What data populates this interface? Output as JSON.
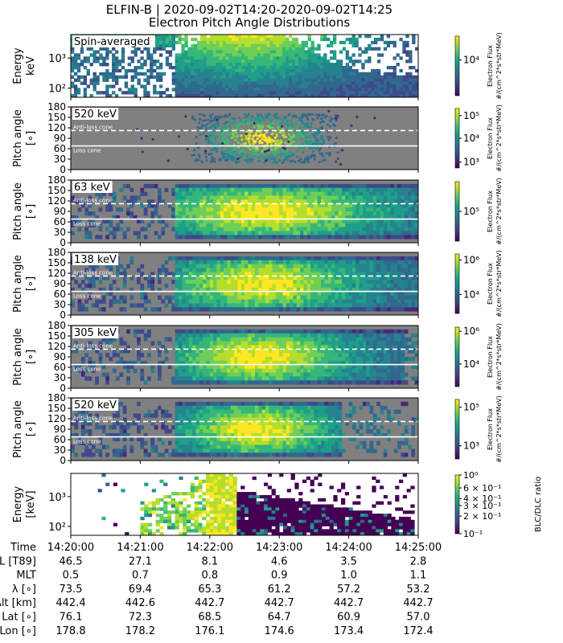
{
  "title": {
    "line1": "ELFIN-B | 2020-09-02T14:20-2020-09-02T14:25",
    "line2": "Electron Pitch Angle Distributions"
  },
  "chart_data": [
    {
      "type": "heatmap",
      "panel": "spectrogram",
      "label": "Spin-averaged",
      "ylabel": [
        "Energy",
        "keV"
      ],
      "yscale": "log",
      "yticks": [
        {
          "value": 100,
          "label": "10²"
        },
        {
          "value": 1000,
          "label": "10³"
        }
      ],
      "ylim": [
        50,
        6000
      ],
      "colorbar": {
        "label": [
          "Electron Flux",
          "#/(cm^2*s*str*MeV)"
        ],
        "ticks": [
          {
            "value": 0.6,
            "label": "10⁴"
          }
        ]
      }
    },
    {
      "type": "scatter",
      "panel": "pa",
      "label": "520 keV",
      "ylabel": [
        "Pitch angle",
        "[∘]"
      ],
      "yticks": [
        0,
        30,
        60,
        90,
        120,
        150,
        180
      ],
      "ylim": [
        0,
        180
      ],
      "anti_loss_cone_label": "Anti-loss cone",
      "loss_cone_label": "Loss cone",
      "anti_loss_cone_deg": 112,
      "loss_cone_deg": 68,
      "colorbar": {
        "label": [
          "Electron Flux",
          "#/(cm^2*s*str*MeV)"
        ],
        "ticks": [
          {
            "value": 0.1,
            "label": "10³"
          },
          {
            "value": 0.5,
            "label": "10⁴"
          },
          {
            "value": 0.88,
            "label": "10⁵"
          }
        ]
      }
    },
    {
      "type": "heatmap",
      "panel": "pa",
      "label": "63 keV",
      "ylabel": [
        "Pitch angle",
        "[∘]"
      ],
      "yticks": [
        0,
        30,
        60,
        90,
        120,
        150,
        180
      ],
      "ylim": [
        0,
        180
      ],
      "anti_loss_cone_label": "Anti-loss cone",
      "loss_cone_label": "Loss cone",
      "anti_loss_cone_deg": 112,
      "loss_cone_deg": 68,
      "colorbar": {
        "label": [
          "Electron Flux",
          "#/(cm^2*s*str*MeV)"
        ],
        "ticks": [
          {
            "value": 0.5,
            "label": "10⁵"
          }
        ]
      }
    },
    {
      "type": "heatmap",
      "panel": "pa",
      "label": "138 keV",
      "ylabel": [
        "Pitch angle",
        "[∘]"
      ],
      "yticks": [
        0,
        30,
        60,
        90,
        120,
        150,
        180
      ],
      "ylim": [
        0,
        180
      ],
      "anti_loss_cone_label": "Anti-loss cone",
      "loss_cone_label": "Loss cone",
      "anti_loss_cone_deg": 112,
      "loss_cone_deg": 68,
      "colorbar": {
        "label": [
          "Electron Flux",
          "#/(cm^2*s*str*MeV)"
        ],
        "ticks": [
          {
            "value": 0.32,
            "label": "10⁴"
          },
          {
            "value": 0.9,
            "label": "10⁶"
          }
        ]
      }
    },
    {
      "type": "heatmap",
      "panel": "pa",
      "label": "305 keV",
      "ylabel": [
        "Pitch angle",
        "[∘]"
      ],
      "yticks": [
        0,
        30,
        60,
        90,
        120,
        150,
        180
      ],
      "ylim": [
        0,
        180
      ],
      "anti_loss_cone_label": "Anti-loss cone",
      "loss_cone_label": "Loss cone",
      "anti_loss_cone_deg": 112,
      "loss_cone_deg": 68,
      "colorbar": {
        "label": [
          "Electron Flux",
          "#/(cm^2*s*str*MeV)"
        ],
        "ticks": [
          {
            "value": 0.38,
            "label": "10⁴"
          },
          {
            "value": 0.93,
            "label": "10⁶"
          }
        ]
      }
    },
    {
      "type": "heatmap",
      "panel": "pa",
      "label": "520 keV",
      "ylabel": [
        "Pitch angle",
        "[∘]"
      ],
      "yticks": [
        0,
        30,
        60,
        90,
        120,
        150,
        180
      ],
      "ylim": [
        0,
        180
      ],
      "anti_loss_cone_label": "Anti-loss cone",
      "loss_cone_label": "Loss cone",
      "anti_loss_cone_deg": 112,
      "loss_cone_deg": 68,
      "colorbar": {
        "label": [
          "Electron Flux",
          "#/(cm^2*s*str*MeV)"
        ],
        "ticks": [
          {
            "value": 0.22,
            "label": "10³"
          },
          {
            "value": 0.87,
            "label": "10⁵"
          }
        ]
      }
    },
    {
      "type": "heatmap",
      "panel": "ratio",
      "label": "",
      "ylabel": [
        "Energy",
        "[keV]"
      ],
      "yscale": "log",
      "yticks": [
        {
          "value": 100,
          "label": "10²"
        },
        {
          "value": 1000,
          "label": "10³"
        }
      ],
      "ylim": [
        50,
        6000
      ],
      "colorbar": {
        "label": [
          "BLC/DLC ratio"
        ],
        "ticks": [
          {
            "value": 0.0,
            "label": "10⁻¹"
          },
          {
            "value": 0.3,
            "label": "2 × 10⁻¹"
          },
          {
            "value": 0.48,
            "label": "3 × 10⁻¹"
          },
          {
            "value": 0.6,
            "label": "4 × 10⁻¹"
          },
          {
            "value": 0.78,
            "label": "6 × 10⁻¹"
          },
          {
            "value": 1.0,
            "label": "10⁰"
          }
        ]
      }
    }
  ],
  "xaxis": {
    "ticks": [
      "14:20:00",
      "14:21:00",
      "14:22:00",
      "14:23:00",
      "14:24:00",
      "14:25:00"
    ]
  },
  "ephemeris": [
    {
      "name": "Time",
      "values": [
        "",
        "",
        "",
        "",
        "",
        ""
      ]
    },
    {
      "name": "L [T89]",
      "values": [
        "46.5",
        "27.1",
        "8.1",
        "4.6",
        "3.5",
        "2.8"
      ]
    },
    {
      "name": "MLT",
      "values": [
        "0.5",
        "0.7",
        "0.8",
        "0.9",
        "1.0",
        "1.1"
      ]
    },
    {
      "name": "λ [∘]",
      "values": [
        "73.5",
        "69.4",
        "65.3",
        "61.2",
        "57.2",
        "53.2"
      ]
    },
    {
      "name": "Alt [km]",
      "values": [
        "442.4",
        "442.6",
        "442.7",
        "442.7",
        "442.7",
        "442.7"
      ]
    },
    {
      "name": "Geo Lat [∘]",
      "values": [
        "76.1",
        "72.3",
        "68.5",
        "64.7",
        "60.9",
        "57.0"
      ]
    },
    {
      "name": "Geo Lon [∘]",
      "values": [
        "178.8",
        "178.2",
        "176.1",
        "174.6",
        "173.4",
        "172.4"
      ]
    }
  ],
  "colors": {
    "background_gray": "#808080",
    "cone_line": "#ffffff",
    "viridis": [
      "#440154",
      "#482878",
      "#3e4a89",
      "#31688e",
      "#26828e",
      "#1f9e89",
      "#35b779",
      "#6ece58",
      "#b5de2b",
      "#fde725"
    ]
  }
}
